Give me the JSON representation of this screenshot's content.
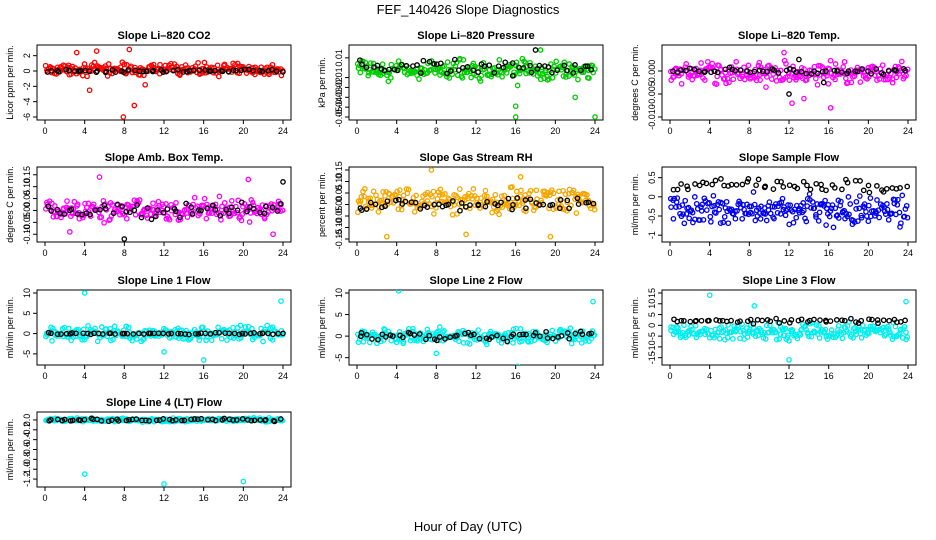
{
  "figure": {
    "title": "FEF_140426  Slope Diagnostics",
    "xlabel": "Hour of Day (UTC)"
  },
  "chart_data": [
    {
      "type": "scatter",
      "title": "Slope Li–820 CO2",
      "xlabel": "",
      "ylabel": "Licor ppm per min.",
      "xlim": [
        0,
        24
      ],
      "ylim": [
        -6,
        3
      ],
      "xticks": [
        "0",
        "4",
        "8",
        "12",
        "16",
        "20",
        "24"
      ],
      "yticks": [
        "-6",
        "-4",
        "-2",
        "0",
        "2"
      ],
      "series": [
        {
          "name": "all",
          "color": "#ff0000",
          "center": 0.2,
          "spread": 0.8,
          "outliers": [
            [
              4.5,
              -2.5
            ],
            [
              7.9,
              -6.0
            ],
            [
              9.0,
              -4.5
            ],
            [
              5.2,
              2.6
            ],
            [
              8.5,
              2.8
            ],
            [
              3.2,
              2.4
            ],
            [
              10.1,
              -1.8
            ]
          ]
        },
        {
          "name": "selected",
          "color": "#000000",
          "center": 0.0,
          "spread": 0.2,
          "outliers": []
        }
      ]
    },
    {
      "type": "scatter",
      "title": "Slope Li–820 Pressure",
      "xlabel": "",
      "ylabel": "kPa per min.",
      "xlim": [
        0,
        24
      ],
      "ylim": [
        -0.05,
        0.02
      ],
      "xticks": [
        "0",
        "4",
        "8",
        "12",
        "16",
        "20",
        "24"
      ],
      "yticks": [
        "-0.05",
        "-0.04",
        "-0.03",
        "-0.02",
        "-0.01",
        "0.01"
      ],
      "series": [
        {
          "name": "all",
          "color": "#00cc00",
          "center": -0.002,
          "spread": 0.01,
          "outliers": [
            [
              16.0,
              -0.039
            ],
            [
              16.0,
              -0.05
            ],
            [
              18.5,
              0.018
            ],
            [
              16.2,
              -0.018
            ],
            [
              22.0,
              -0.03
            ],
            [
              24.0,
              -0.05
            ]
          ]
        },
        {
          "name": "selected",
          "color": "#000000",
          "center": 0.0,
          "spread": 0.008,
          "outliers": [
            [
              18.0,
              0.018
            ]
          ]
        }
      ]
    },
    {
      "type": "scatter",
      "title": "Slope Li–820 Temp.",
      "xlabel": "",
      "ylabel": "degrees C per min.",
      "xlim": [
        0,
        24
      ],
      "ylim": [
        -0.01,
        0.005
      ],
      "xticks": [
        "0",
        "4",
        "8",
        "12",
        "16",
        "20",
        "24"
      ],
      "yticks": [
        "-0.010",
        "-0.005",
        "0.000"
      ],
      "series": [
        {
          "name": "all",
          "color": "#ff00ff",
          "center": -0.0005,
          "spread": 0.0025,
          "outliers": [
            [
              11.5,
              0.004
            ],
            [
              12.3,
              -0.007
            ],
            [
              9.0,
              0.0018
            ],
            [
              16.2,
              -0.008
            ],
            [
              13.5,
              -0.006
            ],
            [
              17.6,
              0.002
            ]
          ]
        },
        {
          "name": "selected",
          "color": "#000000",
          "center": 0.0,
          "spread": 0.0008,
          "outliers": [
            [
              13.0,
              0.0025
            ],
            [
              15.5,
              -0.0025
            ],
            [
              12.0,
              -0.005
            ]
          ]
        }
      ]
    },
    {
      "type": "scatter",
      "title": "Slope Amb. Box Temp.",
      "xlabel": "",
      "ylabel": "degrees C per min.",
      "xlim": [
        0,
        24
      ],
      "ylim": [
        -0.12,
        0.17
      ],
      "xticks": [
        "0",
        "4",
        "8",
        "12",
        "16",
        "20",
        "24"
      ],
      "yticks": [
        "-0.10",
        "-0.05",
        "0.00",
        "0.05",
        "0.10",
        "0.15"
      ],
      "series": [
        {
          "name": "all",
          "color": "#ff00ff",
          "center": 0.0,
          "spread": 0.05,
          "outliers": [
            [
              5.5,
              0.14
            ],
            [
              20.5,
              0.13
            ],
            [
              23.0,
              -0.1
            ],
            [
              2.5,
              -0.09
            ]
          ]
        },
        {
          "name": "selected",
          "color": "#000000",
          "center": 0.0,
          "spread": 0.035,
          "outliers": [
            [
              24.0,
              0.12
            ],
            [
              8.0,
              -0.12
            ]
          ]
        }
      ]
    },
    {
      "type": "scatter",
      "title": "Slope Gas Stream RH",
      "xlabel": "",
      "ylabel": "percent per min.",
      "xlim": [
        0,
        24
      ],
      "ylim": [
        -0.15,
        0.15
      ],
      "xticks": [
        "0",
        "4",
        "8",
        "12",
        "16",
        "20",
        "24"
      ],
      "yticks": [
        "-0.15",
        "-0.10",
        "-0.05",
        "0.00",
        "0.05",
        "0.10",
        "0.15"
      ],
      "series": [
        {
          "name": "all",
          "color": "#f5a600",
          "center": 0.02,
          "spread": 0.06,
          "outliers": [
            [
              3.0,
              -0.14
            ],
            [
              7.5,
              0.15
            ],
            [
              11.0,
              -0.13
            ],
            [
              19.5,
              -0.14
            ],
            [
              16.5,
              0.12
            ]
          ]
        },
        {
          "name": "selected",
          "color": "#000000",
          "center": 0.0,
          "spread": 0.03,
          "outliers": []
        }
      ]
    },
    {
      "type": "scatter",
      "title": "Slope Sample Flow",
      "xlabel": "",
      "ylabel": "ml/min per min.",
      "xlim": [
        0,
        24
      ],
      "ylim": [
        -1.1,
        0.7
      ],
      "xticks": [
        "0",
        "4",
        "8",
        "12",
        "16",
        "20",
        "24"
      ],
      "yticks": [
        "-1",
        "-0.5",
        "0",
        "0.5"
      ],
      "series": [
        {
          "name": "all",
          "color": "#0000ee",
          "center": -0.35,
          "spread": 0.45,
          "outliers": []
        },
        {
          "name": "selected",
          "color": "#000000",
          "center": 0.3,
          "spread": 0.2,
          "outliers": []
        }
      ]
    },
    {
      "type": "scatter",
      "title": "Slope Line 1 Flow",
      "xlabel": "",
      "ylabel": "ml/min per min.",
      "xlim": [
        0,
        24
      ],
      "ylim": [
        -7,
        10
      ],
      "xticks": [
        "0",
        "4",
        "8",
        "12",
        "16",
        "20",
        "24"
      ],
      "yticks": [
        "-5",
        "0",
        "5",
        "10"
      ],
      "series": [
        {
          "name": "all",
          "color": "#00eeee",
          "center": 0.0,
          "spread": 2.0,
          "outliers": [
            [
              4.0,
              10.0
            ],
            [
              23.8,
              8.0
            ],
            [
              16.0,
              -6.5
            ],
            [
              12.0,
              -4.5
            ]
          ]
        },
        {
          "name": "selected",
          "color": "#000000",
          "center": 0.0,
          "spread": 0.25,
          "outliers": []
        }
      ]
    },
    {
      "type": "scatter",
      "title": "Slope Line 2 Flow",
      "xlabel": "",
      "ylabel": "ml/min per min.",
      "xlim": [
        0,
        24
      ],
      "ylim": [
        -6,
        10
      ],
      "xticks": [
        "0",
        "4",
        "8",
        "12",
        "16",
        "20",
        "24"
      ],
      "yticks": [
        "-5",
        "0",
        "5",
        "10"
      ],
      "series": [
        {
          "name": "all",
          "color": "#00eeee",
          "center": 0.0,
          "spread": 2.0,
          "outliers": [
            [
              4.2,
              10.5
            ],
            [
              23.8,
              8.0
            ],
            [
              16.2,
              -7.0
            ],
            [
              8.0,
              -4.0
            ]
          ]
        },
        {
          "name": "selected",
          "color": "#000000",
          "center": 0.0,
          "spread": 1.3,
          "outliers": []
        }
      ]
    },
    {
      "type": "scatter",
      "title": "Slope Line 3 Flow",
      "xlabel": "",
      "ylabel": "ml/min per min.",
      "xlim": [
        0,
        24
      ],
      "ylim": [
        -17,
        15
      ],
      "xticks": [
        "0",
        "4",
        "8",
        "12",
        "16",
        "20",
        "24"
      ],
      "yticks": [
        "-15",
        "-10",
        "-5",
        "0",
        "5",
        "10",
        "15"
      ],
      "series": [
        {
          "name": "all",
          "color": "#00eeee",
          "center": -3.0,
          "spread": 4.0,
          "outliers": [
            [
              4.0,
              14.0
            ],
            [
              12.0,
              -16.0
            ],
            [
              23.8,
              11.0
            ],
            [
              8.5,
              9.0
            ]
          ]
        },
        {
          "name": "selected",
          "color": "#000000",
          "center": 2.0,
          "spread": 1.5,
          "outliers": []
        }
      ]
    },
    {
      "type": "scatter",
      "title": "Slope Line 4 (LT) Flow",
      "xlabel": "",
      "ylabel": "ml/min per min.",
      "xlim": [
        0,
        24
      ],
      "ylim": [
        -1.3,
        0.1
      ],
      "xticks": [
        "0",
        "4",
        "8",
        "12",
        "16",
        "20",
        "24"
      ],
      "yticks": [
        "-1.2",
        "-1.0",
        "-0.8",
        "-0.6",
        "-0.4",
        "-0.2",
        "0.0"
      ],
      "series": [
        {
          "name": "all",
          "color": "#00eeee",
          "center": 0.0,
          "spread": 0.04,
          "outliers": [
            [
              4.0,
              -1.1
            ],
            [
              12.0,
              -1.3
            ],
            [
              20.0,
              -1.25
            ]
          ]
        },
        {
          "name": "selected",
          "color": "#000000",
          "center": 0.0,
          "spread": 0.035,
          "outliers": []
        }
      ]
    }
  ]
}
